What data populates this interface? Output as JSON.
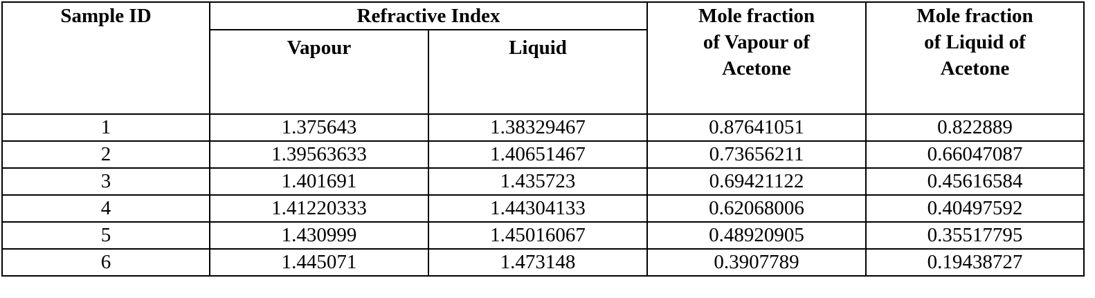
{
  "table": {
    "headers": {
      "sample_id": "Sample ID",
      "refractive_index": "Refractive Index",
      "vapour": "Vapour",
      "liquid": "Liquid",
      "mole_fraction_vapour": "Mole fraction of Vapour of Acetone",
      "mole_fraction_liquid": "Mole fraction of Liquid of Acetone"
    },
    "rows": [
      [
        "1",
        "1.375643",
        "1.38329467",
        "0.87641051",
        "0.822889"
      ],
      [
        "2",
        "1.39563633",
        "1.40651467",
        "0.73656211",
        "0.66047087"
      ],
      [
        "3",
        "1.401691",
        "1.435723",
        "0.69421122",
        "0.45616584"
      ],
      [
        "4",
        "1.41220333",
        "1.44304133",
        "0.62068006",
        "0.40497592"
      ],
      [
        "5",
        "1.430999",
        "1.45016067",
        "0.48920905",
        "0.35517795"
      ],
      [
        "6",
        "1.445071",
        "1.473148",
        "0.3907789",
        "0.19438727"
      ]
    ]
  }
}
